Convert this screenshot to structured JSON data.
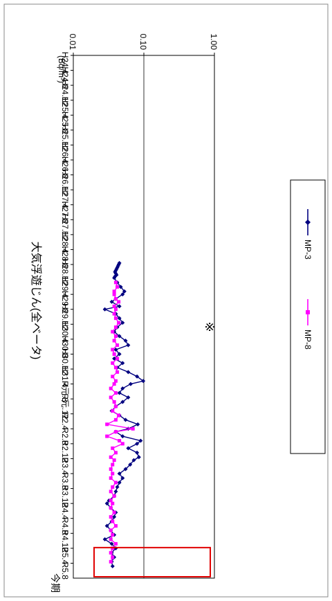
{
  "chart_data": {
    "type": "line",
    "orientation": "rotated-90-clockwise",
    "title": "大気浮遊じん(全ベータ)",
    "unit_label": "(Bq/m³)",
    "current_period_label": "今期",
    "note_mark": "※",
    "yscale": "log",
    "ylim": [
      0.01,
      1.0
    ],
    "y_ticks": [
      "1.00",
      "0.10",
      "0.01"
    ],
    "grid": "horizontal line at 0.10",
    "legend_position": "bottom (vertical bar)",
    "categories": [
      "H24.4",
      "H24.8",
      "H24.12",
      "H25.4",
      "H25.8",
      "H25.12",
      "H26.4",
      "H26.8",
      "H26.12",
      "H27.4",
      "H27.8",
      "H27.12",
      "H28.4",
      "H28.8",
      "H28.12",
      "H29.4",
      "H29.8",
      "H29.12",
      "H30.4",
      "H30.8",
      "H30.12",
      "H31.4",
      "R元.8",
      "R元.12",
      "R2.4",
      "R2.8",
      "R2.12",
      "R3.4",
      "R3.8",
      "R3.12",
      "R4.4",
      "R4.8",
      "R4.12",
      "R5.4",
      "R5.8"
    ],
    "series": [
      {
        "name": "MP-3",
        "color": "#000080",
        "marker": "diamond",
        "values": [
          [
            13.9,
            0.045
          ],
          [
            14.0,
            0.044
          ],
          [
            14.1,
            0.043
          ],
          [
            14.2,
            0.042
          ],
          [
            14.3,
            0.041
          ],
          [
            14.4,
            0.04
          ],
          [
            14.5,
            0.039
          ],
          [
            14.6,
            0.04
          ],
          [
            14.7,
            0.041
          ],
          [
            14.8,
            0.039
          ],
          [
            14.9,
            0.038
          ],
          [
            15.2,
            0.042
          ],
          [
            15.5,
            0.047
          ],
          [
            15.8,
            0.053
          ],
          [
            16.0,
            0.05
          ],
          [
            16.3,
            0.04
          ],
          [
            16.5,
            0.035
          ],
          [
            16.8,
            0.045
          ],
          [
            17.0,
            0.028
          ],
          [
            17.3,
            0.04
          ],
          [
            17.6,
            0.045
          ],
          [
            17.9,
            0.05
          ],
          [
            18.2,
            0.042
          ],
          [
            18.5,
            0.038
          ],
          [
            18.8,
            0.045
          ],
          [
            19.1,
            0.055
          ],
          [
            19.4,
            0.06
          ],
          [
            19.7,
            0.04
          ],
          [
            20.0,
            0.045
          ],
          [
            20.3,
            0.038
          ],
          [
            20.6,
            0.05
          ],
          [
            20.9,
            0.042
          ],
          [
            21.2,
            0.06
          ],
          [
            21.5,
            0.08
          ],
          [
            21.8,
            0.098
          ],
          [
            22.0,
            0.065
          ],
          [
            22.3,
            0.05
          ],
          [
            22.6,
            0.045
          ],
          [
            22.9,
            0.06
          ],
          [
            23.2,
            0.05
          ],
          [
            23.5,
            0.04
          ],
          [
            23.8,
            0.035
          ],
          [
            24.1,
            0.045
          ],
          [
            24.4,
            0.055
          ],
          [
            24.7,
            0.082
          ],
          [
            25.0,
            0.06
          ],
          [
            25.2,
            0.04
          ],
          [
            25.5,
            0.05
          ],
          [
            25.8,
            0.09
          ],
          [
            26.0,
            0.08
          ],
          [
            26.3,
            0.06
          ],
          [
            26.6,
            0.08
          ],
          [
            26.9,
            0.085
          ],
          [
            27.1,
            0.072
          ],
          [
            27.4,
            0.064
          ],
          [
            27.7,
            0.055
          ],
          [
            28.0,
            0.045
          ],
          [
            28.3,
            0.05
          ],
          [
            28.6,
            0.045
          ],
          [
            28.9,
            0.042
          ],
          [
            29.2,
            0.04
          ],
          [
            29.5,
            0.038
          ],
          [
            29.8,
            0.032
          ],
          [
            30.0,
            0.03
          ],
          [
            30.3,
            0.034
          ],
          [
            30.6,
            0.04
          ],
          [
            30.9,
            0.038
          ],
          [
            31.2,
            0.035
          ],
          [
            31.5,
            0.03
          ],
          [
            31.8,
            0.034
          ],
          [
            32.1,
            0.038
          ],
          [
            32.4,
            0.028
          ],
          [
            32.7,
            0.035
          ],
          [
            33.0,
            0.04
          ],
          [
            33.3,
            0.035
          ],
          [
            33.6,
            0.038
          ],
          [
            33.9,
            0.035
          ],
          [
            34.2,
            0.036
          ]
        ]
      },
      {
        "name": "MP-8",
        "color": "#ff00ff",
        "marker": "square",
        "values": [
          [
            15.2,
            0.04
          ],
          [
            15.5,
            0.042
          ],
          [
            15.8,
            0.038
          ],
          [
            16.0,
            0.038
          ],
          [
            16.3,
            0.04
          ],
          [
            16.5,
            0.044
          ],
          [
            16.8,
            0.038
          ],
          [
            17.0,
            0.04
          ],
          [
            17.3,
            0.038
          ],
          [
            17.6,
            0.04
          ],
          [
            17.9,
            0.044
          ],
          [
            18.2,
            0.04
          ],
          [
            18.5,
            0.036
          ],
          [
            18.8,
            0.04
          ],
          [
            19.1,
            0.038
          ],
          [
            19.4,
            0.042
          ],
          [
            19.7,
            0.036
          ],
          [
            20.0,
            0.038
          ],
          [
            20.3,
            0.042
          ],
          [
            20.6,
            0.036
          ],
          [
            20.9,
            0.04
          ],
          [
            21.2,
            0.042
          ],
          [
            21.5,
            0.036
          ],
          [
            21.8,
            0.04
          ],
          [
            22.0,
            0.038
          ],
          [
            22.3,
            0.034
          ],
          [
            22.6,
            0.04
          ],
          [
            22.9,
            0.034
          ],
          [
            23.2,
            0.038
          ],
          [
            23.5,
            0.04
          ],
          [
            23.8,
            0.036
          ],
          [
            24.1,
            0.044
          ],
          [
            24.4,
            0.04
          ],
          [
            24.7,
            0.03
          ],
          [
            25.0,
            0.07
          ],
          [
            25.2,
            0.04
          ],
          [
            25.5,
            0.03
          ],
          [
            25.8,
            0.045
          ],
          [
            26.0,
            0.05
          ],
          [
            26.3,
            0.036
          ],
          [
            26.6,
            0.04
          ],
          [
            26.9,
            0.034
          ],
          [
            27.1,
            0.038
          ],
          [
            27.4,
            0.036
          ],
          [
            27.7,
            0.034
          ],
          [
            28.0,
            0.036
          ],
          [
            28.3,
            0.034
          ],
          [
            28.6,
            0.04
          ],
          [
            28.9,
            0.036
          ],
          [
            29.2,
            0.034
          ],
          [
            29.5,
            0.038
          ],
          [
            29.8,
            0.034
          ],
          [
            30.0,
            0.036
          ],
          [
            30.3,
            0.034
          ],
          [
            30.6,
            0.038
          ],
          [
            30.9,
            0.034
          ],
          [
            31.2,
            0.036
          ],
          [
            31.5,
            0.04
          ],
          [
            31.8,
            0.034
          ],
          [
            32.1,
            0.036
          ],
          [
            32.4,
            0.034
          ],
          [
            32.7,
            0.04
          ],
          [
            33.0,
            0.036
          ],
          [
            33.3,
            0.034
          ],
          [
            33.6,
            0.036
          ],
          [
            33.9,
            0.034
          ]
        ]
      }
    ]
  }
}
